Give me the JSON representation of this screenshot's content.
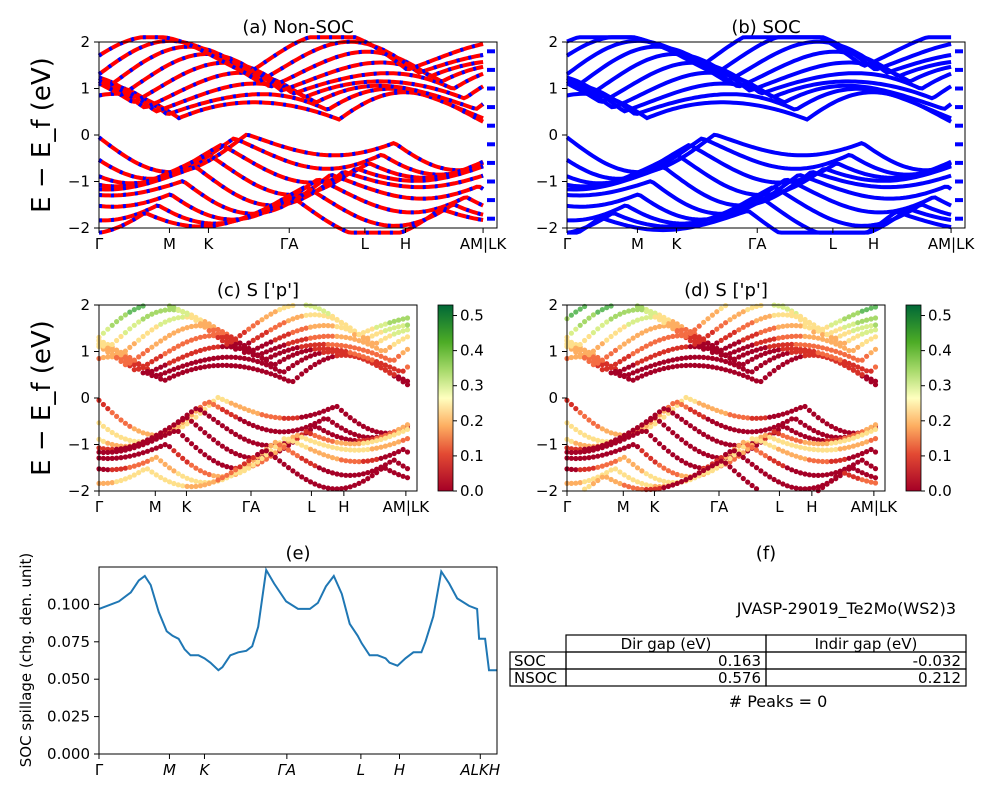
{
  "figure": {
    "ylabel_band": "E − E_f (eV)"
  },
  "panels": [
    {
      "id": "a",
      "title": "(a) Non-SOC",
      "kind": "bands",
      "colors": [
        "#ff0000",
        "#0000ff"
      ],
      "ylim": [
        -2,
        2
      ],
      "yticks": [
        "2",
        "1",
        "0",
        "−1",
        "−2"
      ],
      "kpath": [
        "Γ",
        "M",
        "K",
        "ΓA",
        "L",
        "H",
        "AM|LK"
      ]
    },
    {
      "id": "b",
      "title": "(b) SOC",
      "kind": "bands",
      "colors": [
        "#0000ff"
      ],
      "ylim": [
        -2,
        2
      ],
      "yticks": [
        "2",
        "1",
        "0",
        "−1",
        "−2"
      ],
      "kpath": [
        "Γ",
        "M",
        "K",
        "ΓA",
        "L",
        "H",
        "AM|LK"
      ]
    },
    {
      "id": "c",
      "title": "(c)  S ['p']",
      "kind": "projected",
      "ylim": [
        -2,
        2
      ],
      "yticks": [
        "2",
        "1",
        "0",
        "−1",
        "−2"
      ],
      "kpath": [
        "Γ",
        "M",
        "K",
        "ΓA",
        "L",
        "H",
        "AM|LK"
      ],
      "colorbar": {
        "ticks": [
          "0.5",
          "0.4",
          "0.3",
          "0.2",
          "0.1",
          "0.0"
        ],
        "range": [
          0,
          0.53
        ]
      }
    },
    {
      "id": "d",
      "title": "(d) S ['p']",
      "kind": "projected",
      "ylim": [
        -2,
        2
      ],
      "yticks": [
        "2",
        "1",
        "0",
        "−1",
        "−2"
      ],
      "kpath": [
        "Γ",
        "M",
        "K",
        "ΓA",
        "L",
        "H",
        "AM|LK"
      ],
      "colorbar": {
        "ticks": [
          "0.5",
          "0.4",
          "0.3",
          "0.2",
          "0.1",
          "0.0"
        ],
        "range": [
          0,
          0.53
        ]
      }
    }
  ],
  "chart_data": [
    {
      "type": "line",
      "panel": "e",
      "title": "(e)",
      "ylabel": "SOC spillage (chg. den. unit)",
      "ylim": [
        0,
        0.125
      ],
      "yticks": [
        "0.100",
        "0.075",
        "0.050",
        "0.025",
        "0.000"
      ],
      "xticks": [
        "Γ",
        "M",
        "K",
        "ΓA",
        "L",
        "H",
        "ALKH"
      ],
      "color": "#1f77b4",
      "x": [
        0,
        0.02,
        0.05,
        0.08,
        0.1,
        0.115,
        0.13,
        0.15,
        0.17,
        0.185,
        0.2,
        0.215,
        0.23,
        0.25,
        0.265,
        0.28,
        0.3,
        0.31,
        0.33,
        0.35,
        0.37,
        0.385,
        0.4,
        0.42,
        0.44,
        0.47,
        0.5,
        0.53,
        0.55,
        0.57,
        0.59,
        0.61,
        0.63,
        0.65,
        0.66,
        0.68,
        0.7,
        0.72,
        0.73,
        0.75,
        0.77,
        0.79,
        0.81,
        0.82,
        0.84,
        0.86,
        0.88,
        0.9,
        0.93,
        0.95,
        0.955,
        0.96,
        0.97,
        0.98,
        0.99,
        1.0
      ],
      "y": [
        0.097,
        0.099,
        0.102,
        0.108,
        0.116,
        0.119,
        0.113,
        0.095,
        0.082,
        0.079,
        0.077,
        0.07,
        0.066,
        0.066,
        0.064,
        0.061,
        0.056,
        0.058,
        0.066,
        0.068,
        0.069,
        0.072,
        0.085,
        0.123,
        0.114,
        0.102,
        0.097,
        0.097,
        0.101,
        0.112,
        0.119,
        0.107,
        0.087,
        0.079,
        0.074,
        0.066,
        0.066,
        0.064,
        0.061,
        0.059,
        0.064,
        0.068,
        0.068,
        0.075,
        0.092,
        0.122,
        0.114,
        0.104,
        0.099,
        0.097,
        0.077,
        0.077,
        0.077,
        0.056,
        0.056,
        0.056
      ]
    }
  ],
  "table": {
    "panel_title": "(f)",
    "jid": "JVASP-29019_Te2Mo(WS2)3",
    "headers": [
      "Dir gap (eV)",
      "Indir gap (eV)"
    ],
    "rows": [
      {
        "label": "SOC",
        "dir": "0.163",
        "indir": "-0.032"
      },
      {
        "label": "NSOC",
        "dir": "0.576",
        "indir": "0.212"
      }
    ],
    "peaks": "# Peaks = 0"
  }
}
